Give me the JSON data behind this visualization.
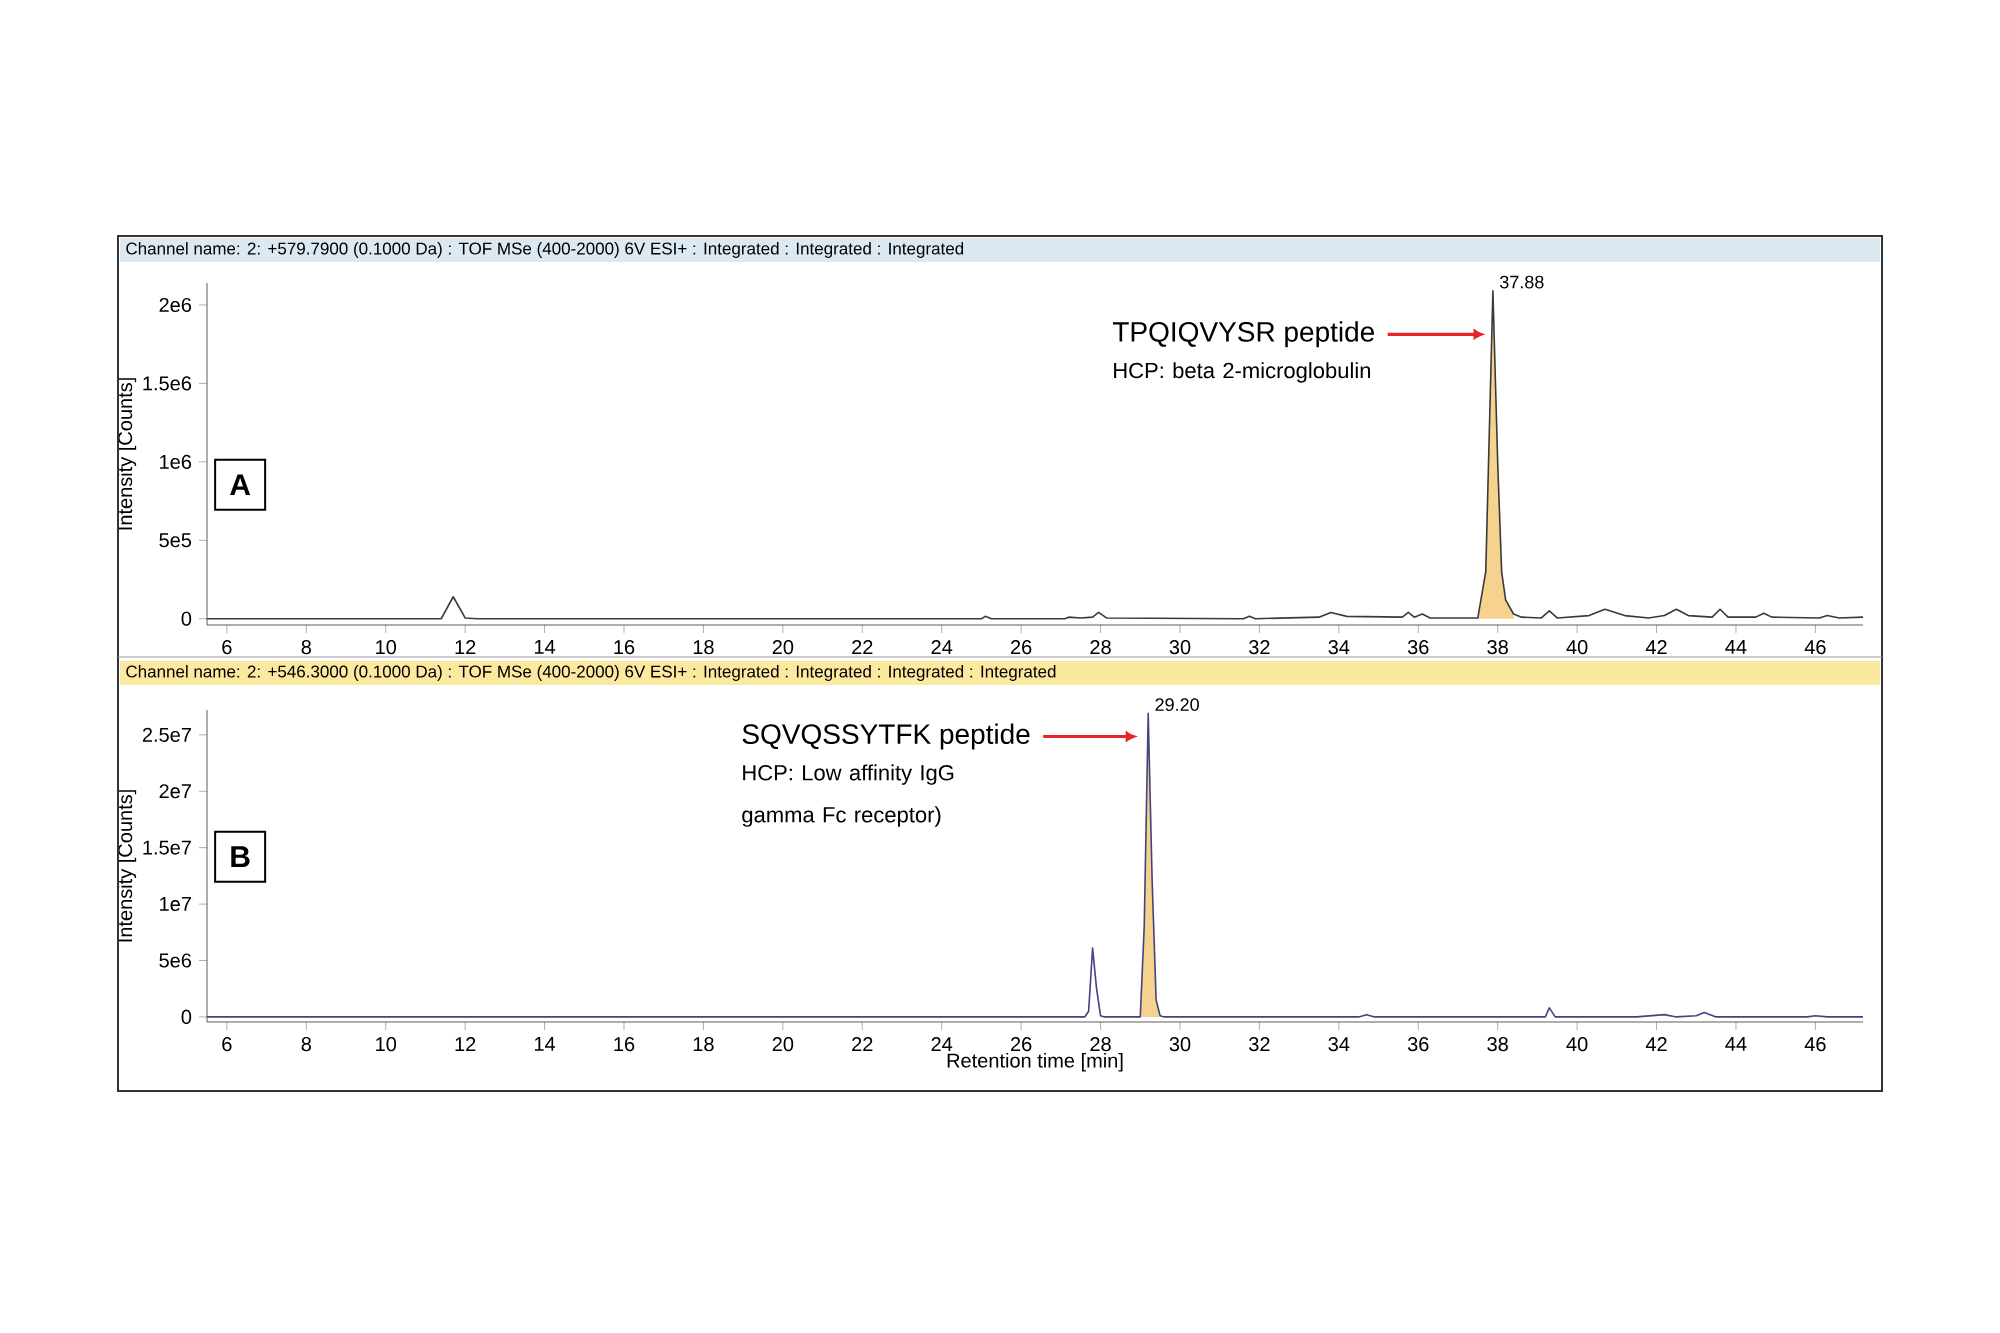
{
  "chart_data": [
    {
      "type": "line",
      "title": "Channel name: 2: +579.7900 (0.1000 Da) : TOF MSe (400-2000) 6V ESI+ : Integrated : Integrated : Integrated",
      "ylabel": "Intensity [Counts]",
      "xlim": [
        5.5,
        47.2
      ],
      "ylim": [
        -40000,
        2140000
      ],
      "xticks": [
        6,
        8,
        10,
        12,
        14,
        16,
        18,
        20,
        22,
        24,
        26,
        28,
        30,
        32,
        34,
        36,
        38,
        40,
        42,
        44,
        46
      ],
      "yticks": [
        {
          "value": 0,
          "label": "0"
        },
        {
          "value": 500000,
          "label": "5e5"
        },
        {
          "value": 1000000,
          "label": "1e6"
        },
        {
          "value": 1500000,
          "label": "1.5e6"
        },
        {
          "value": 2000000,
          "label": "2e6"
        }
      ],
      "series": [
        {
          "type": "area",
          "color": "#f6d28f",
          "x": [
            37.5,
            37.7,
            37.88,
            38.0,
            38.1,
            38.2,
            38.4
          ],
          "values": [
            5000,
            300000,
            2090000,
            1000000,
            300000,
            120000,
            30000
          ]
        },
        {
          "color": "#3a3a3a",
          "x": [
            5.5,
            11.4,
            11.7,
            12.0,
            12.3,
            25.0,
            25.1,
            25.25,
            27.1,
            27.2,
            27.5,
            27.8,
            27.95,
            28.15,
            31.6,
            31.75,
            31.9,
            33.5,
            33.8,
            34.2,
            35.6,
            35.75,
            35.9,
            36.1,
            36.3,
            37.5,
            37.7,
            37.88,
            38.0,
            38.1,
            38.2,
            38.4,
            38.6,
            39.1,
            39.3,
            39.5,
            40.3,
            40.7,
            41.2,
            41.8,
            42.2,
            42.5,
            42.8,
            43.4,
            43.6,
            43.8,
            44.5,
            44.7,
            44.9,
            46.1,
            46.3,
            46.6,
            47.2
          ],
          "values": [
            0,
            0,
            140000,
            5000,
            0,
            0,
            15000,
            0,
            0,
            10000,
            5000,
            10000,
            40000,
            5000,
            0,
            15000,
            0,
            10000,
            40000,
            15000,
            10000,
            40000,
            10000,
            30000,
            5000,
            5000,
            300000,
            2090000,
            1000000,
            300000,
            120000,
            30000,
            10000,
            5000,
            50000,
            5000,
            20000,
            60000,
            20000,
            5000,
            20000,
            60000,
            20000,
            10000,
            60000,
            10000,
            10000,
            35000,
            10000,
            5000,
            20000,
            5000,
            10000
          ]
        }
      ],
      "annotations": [
        "A",
        "TPQIQVYSR peptide",
        "HCP: beta 2-microglobulin",
        {
          "text": "37.88",
          "x": 37.88,
          "y": 2090000
        }
      ]
    },
    {
      "type": "line",
      "title": "Channel name: 2: +546.3000 (0.1000 Da) : TOF MSe (400-2000) 6V ESI+ : Integrated : Integrated : Integrated : Integrated",
      "xlabel": "Retention time [min]",
      "ylabel": "Intensity [Counts]",
      "xlim": [
        5.5,
        47.2
      ],
      "ylim": [
        -450000,
        27200000
      ],
      "xticks": [
        6,
        8,
        10,
        12,
        14,
        16,
        18,
        20,
        22,
        24,
        26,
        28,
        30,
        32,
        34,
        36,
        38,
        40,
        42,
        44,
        46
      ],
      "yticks": [
        {
          "value": 0,
          "label": "0"
        },
        {
          "value": 5000000,
          "label": "5e6"
        },
        {
          "value": 10000000,
          "label": "1e7"
        },
        {
          "value": 15000000,
          "label": "1.5e7"
        },
        {
          "value": 20000000,
          "label": "2e7"
        },
        {
          "value": 25000000,
          "label": "2.5e7"
        }
      ],
      "series": [
        {
          "type": "area",
          "color": "#f6d28f",
          "x": [
            29.0,
            29.1,
            29.2,
            29.3,
            29.4,
            29.5
          ],
          "values": [
            0,
            8000000,
            26900000,
            12000000,
            1500000,
            100000
          ]
        },
        {
          "color": "#43437f",
          "x": [
            5.5,
            27.6,
            27.7,
            27.8,
            27.9,
            28.0,
            28.1,
            29.0,
            29.1,
            29.2,
            29.3,
            29.4,
            29.5,
            29.6,
            34.5,
            34.7,
            34.9,
            39.2,
            39.3,
            39.45,
            41.5,
            42.2,
            42.5,
            43.0,
            43.2,
            43.5,
            45.8,
            46.0,
            46.3,
            47.2
          ],
          "values": [
            0,
            0,
            500000,
            6100000,
            2500000,
            100000,
            0,
            0,
            8000000,
            26900000,
            12000000,
            1500000,
            100000,
            0,
            0,
            200000,
            0,
            0,
            800000,
            0,
            0,
            200000,
            0,
            100000,
            400000,
            0,
            0,
            100000,
            0,
            0
          ]
        }
      ],
      "annotations": [
        "B",
        "SQVQSSYTFK peptide",
        "HCP: Low affinity IgG gamma Fc receptor)",
        {
          "text": "29.20",
          "x": 29.2,
          "y": 26900000
        }
      ]
    }
  ]
}
